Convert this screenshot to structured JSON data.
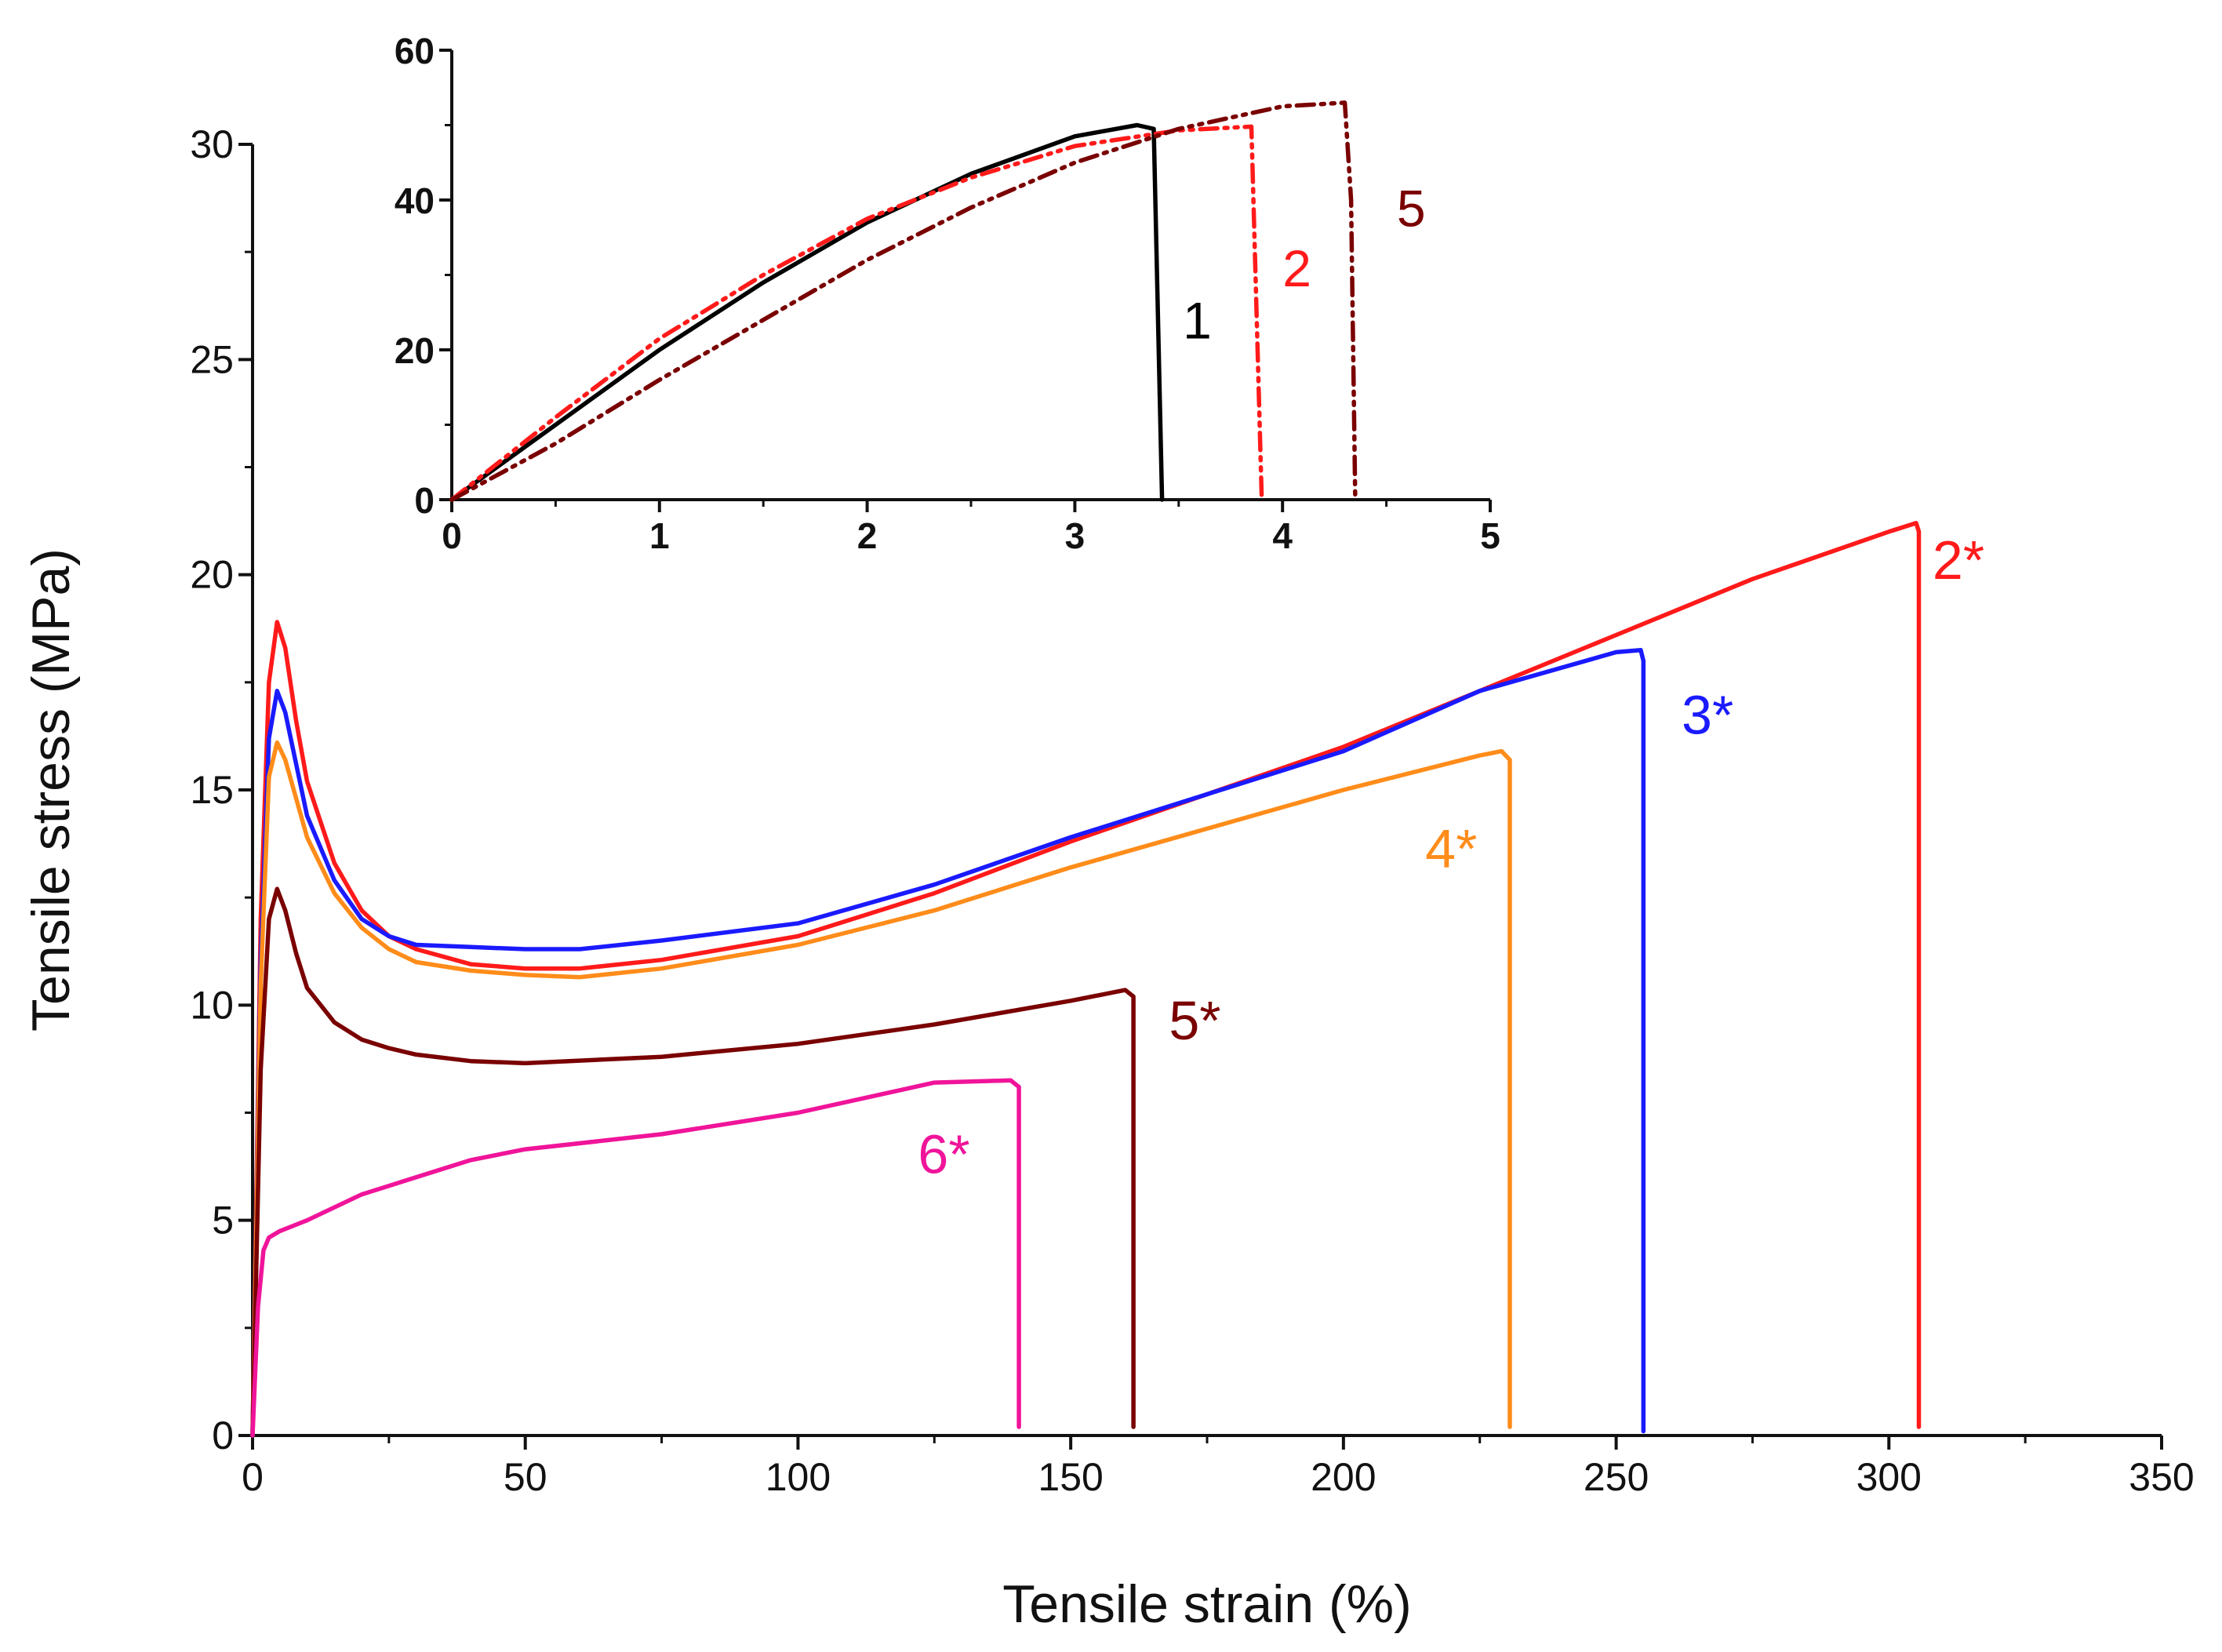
{
  "chart_data": [
    {
      "id": "main",
      "type": "line",
      "xlabel": "Tensile strain (%)",
      "ylabel": "Tensile stress (MPa)",
      "xlim": [
        0,
        350
      ],
      "ylim": [
        0,
        30
      ],
      "xticks": [
        0,
        50,
        100,
        150,
        200,
        250,
        300,
        350
      ],
      "yticks": [
        0,
        5,
        10,
        15,
        20,
        25,
        30
      ],
      "grid": false,
      "series": [
        {
          "name": "2*",
          "color": "#ff1a1a",
          "label_pos": [
            308,
            19.9
          ],
          "x": [
            0,
            1.5,
            3,
            4.5,
            6,
            8,
            10,
            15,
            20,
            25,
            30,
            40,
            50,
            60,
            75,
            100,
            125,
            150,
            175,
            200,
            225,
            250,
            275,
            300,
            305,
            305.5,
            305.5
          ],
          "y": [
            0,
            12,
            17.5,
            18.9,
            18.3,
            16.6,
            15.2,
            13.3,
            12.2,
            11.6,
            11.3,
            10.95,
            10.85,
            10.85,
            11.05,
            11.6,
            12.6,
            13.8,
            14.9,
            16.0,
            17.3,
            18.6,
            19.9,
            21.0,
            21.2,
            21.0,
            0.2
          ]
        },
        {
          "name": "3*",
          "color": "#1a1aff",
          "label_pos": [
            262,
            16.3
          ],
          "x": [
            0,
            1.5,
            3,
            4.5,
            6,
            8,
            10,
            15,
            20,
            25,
            30,
            40,
            50,
            60,
            75,
            100,
            125,
            150,
            175,
            200,
            225,
            250,
            254.5,
            255,
            255
          ],
          "y": [
            0,
            11,
            16.2,
            17.3,
            16.8,
            15.6,
            14.4,
            12.9,
            12.0,
            11.6,
            11.4,
            11.35,
            11.3,
            11.3,
            11.5,
            11.9,
            12.8,
            13.9,
            14.9,
            15.9,
            17.3,
            18.2,
            18.25,
            18.0,
            0.1
          ]
        },
        {
          "name": "4*",
          "color": "#ff8c1a",
          "label_pos": [
            215,
            13.2
          ],
          "x": [
            0,
            1.5,
            3,
            4.5,
            6,
            8,
            10,
            15,
            20,
            25,
            30,
            40,
            50,
            60,
            75,
            100,
            125,
            150,
            175,
            200,
            225,
            229,
            230.5,
            230.5
          ],
          "y": [
            0,
            10.5,
            15.3,
            16.1,
            15.7,
            14.8,
            13.9,
            12.6,
            11.8,
            11.3,
            11.0,
            10.8,
            10.7,
            10.65,
            10.85,
            11.4,
            12.2,
            13.2,
            14.1,
            15.0,
            15.8,
            15.9,
            15.7,
            0.2
          ]
        },
        {
          "name": "5*",
          "color": "#7a0000",
          "label_pos": [
            168,
            9.2
          ],
          "x": [
            0,
            1.5,
            3,
            4.5,
            6,
            8,
            10,
            15,
            20,
            25,
            30,
            40,
            50,
            75,
            100,
            125,
            150,
            160,
            161.5,
            161.5
          ],
          "y": [
            0,
            8.5,
            12.0,
            12.7,
            12.2,
            11.2,
            10.4,
            9.6,
            9.2,
            9.0,
            8.85,
            8.7,
            8.65,
            8.8,
            9.1,
            9.55,
            10.1,
            10.35,
            10.2,
            0.2
          ]
        },
        {
          "name": "6*",
          "color": "#f0149a",
          "label_pos": [
            122,
            6.1
          ],
          "x": [
            0,
            1,
            2,
            3,
            5,
            10,
            20,
            30,
            40,
            50,
            75,
            100,
            125,
            139,
            140.5,
            140.5
          ],
          "y": [
            0,
            3.0,
            4.3,
            4.6,
            4.75,
            5.0,
            5.6,
            6.0,
            6.4,
            6.65,
            7.0,
            7.5,
            8.2,
            8.25,
            8.1,
            0.2
          ]
        }
      ]
    },
    {
      "id": "inset",
      "type": "line",
      "xlabel": "",
      "ylabel": "",
      "xlim": [
        0,
        5
      ],
      "ylim": [
        0,
        60
      ],
      "xticks": [
        0,
        1,
        2,
        3,
        4,
        5
      ],
      "yticks": [
        0,
        20,
        40,
        60
      ],
      "grid": false,
      "series": [
        {
          "name": "1",
          "color": "#000000",
          "style": "solid",
          "label_pos": [
            3.52,
            21.5
          ],
          "x": [
            0,
            0.5,
            1.0,
            1.5,
            2.0,
            2.5,
            3.0,
            3.3,
            3.38,
            3.42
          ],
          "y": [
            0,
            10,
            20,
            29,
            37,
            43.5,
            48.5,
            50,
            49.5,
            0
          ]
        },
        {
          "name": "2",
          "color": "#ff1a1a",
          "style": "dashdotdot",
          "label_pos": [
            4.0,
            28.5
          ],
          "x": [
            0,
            0.5,
            1.0,
            1.5,
            2.0,
            2.5,
            3.0,
            3.5,
            3.85,
            3.86,
            3.9
          ],
          "y": [
            0,
            11,
            21.5,
            30,
            37.5,
            43,
            47.2,
            49.3,
            49.8,
            40,
            0
          ]
        },
        {
          "name": "5",
          "color": "#7a0000",
          "style": "dashdotdot",
          "label_pos": [
            4.55,
            36.5
          ],
          "x": [
            0,
            0.5,
            1.0,
            1.5,
            2.0,
            2.5,
            3.0,
            3.5,
            4.0,
            4.3,
            4.33,
            4.35
          ],
          "y": [
            0,
            7.5,
            16,
            24,
            32,
            39,
            45,
            49.5,
            52.5,
            53,
            40,
            0
          ]
        }
      ]
    }
  ]
}
